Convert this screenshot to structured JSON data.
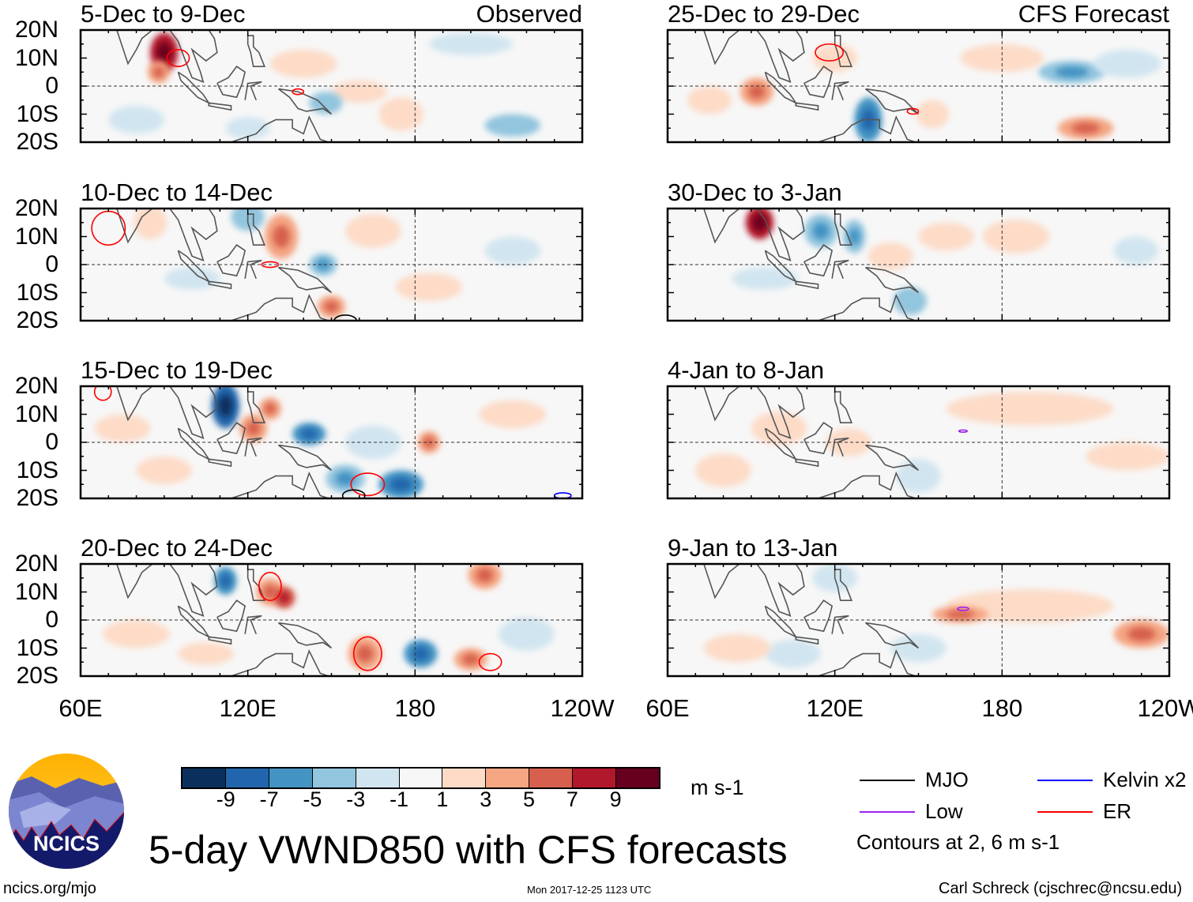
{
  "title": "5-day VWND850 with CFS forecasts",
  "units": "m s-1",
  "footer": {
    "left": "ncics.org/mjo",
    "center": "Mon 2017-12-25 1123 UTC",
    "right": "Carl Schreck (cjschrec@ncsu.edu)"
  },
  "logo_text": "NCICS",
  "column_labels": {
    "left": "Observed",
    "right": "CFS Forecast"
  },
  "y_ticks": [
    "20N",
    "10N",
    "0",
    "10S",
    "20S"
  ],
  "x_ticks": [
    "60E",
    "120E",
    "180",
    "120W"
  ],
  "colorbar": {
    "colors": [
      "#0b2f5d",
      "#2166ac",
      "#4393c3",
      "#92c5de",
      "#d1e5f0",
      "#f7f7f7",
      "#fddbc7",
      "#f4a582",
      "#d6604d",
      "#b2182b",
      "#67001f"
    ],
    "labels": [
      "-9",
      "-7",
      "-5",
      "-3",
      "-1",
      "1",
      "3",
      "5",
      "7",
      "9"
    ]
  },
  "legend": {
    "items": [
      {
        "name": "MJO",
        "color": "#000000"
      },
      {
        "name": "Kelvin x2",
        "color": "#0000ff"
      },
      {
        "name": "Low",
        "color": "#a020f0"
      },
      {
        "name": "ER",
        "color": "#ff0000"
      }
    ],
    "note": "Contours at 2, 6 m s-1"
  },
  "panels": [
    {
      "title": "5-Dec to 9-Dec",
      "label": "Observed",
      "blobs": [
        [
          90,
          12,
          5,
          7,
          8
        ],
        [
          88,
          5,
          4,
          4,
          4
        ],
        [
          140,
          8,
          12,
          5,
          2
        ],
        [
          160,
          -2,
          10,
          4,
          2
        ],
        [
          80,
          -12,
          10,
          5,
          -2
        ],
        [
          200,
          15,
          15,
          4,
          -2
        ],
        [
          215,
          -14,
          10,
          4,
          -3
        ],
        [
          148,
          -6,
          6,
          4,
          -3
        ],
        [
          120,
          -15,
          8,
          4,
          -2
        ],
        [
          175,
          -10,
          8,
          6,
          2
        ]
      ],
      "contours": [
        [
          "ER",
          95,
          10,
          4,
          3
        ],
        [
          "ER",
          138,
          -2,
          2,
          1
        ]
      ]
    },
    {
      "title": "10-Dec to 14-Dec",
      "blobs": [
        [
          132,
          10,
          6,
          8,
          4
        ],
        [
          147,
          0,
          5,
          4,
          -4
        ],
        [
          150,
          -15,
          5,
          4,
          5
        ],
        [
          120,
          17,
          6,
          5,
          -3
        ],
        [
          85,
          15,
          6,
          6,
          2
        ],
        [
          185,
          -8,
          12,
          5,
          2
        ],
        [
          215,
          5,
          10,
          5,
          -2
        ],
        [
          100,
          -5,
          10,
          4,
          -2
        ],
        [
          165,
          12,
          10,
          6,
          2
        ]
      ],
      "contours": [
        [
          "ER",
          70,
          13,
          6,
          6
        ],
        [
          "ER",
          128,
          0,
          3,
          1
        ],
        [
          "MJO",
          155,
          -20,
          4,
          2
        ]
      ]
    },
    {
      "title": "15-Dec to 19-Dec",
      "blobs": [
        [
          112,
          13,
          5,
          8,
          -8
        ],
        [
          122,
          5,
          5,
          5,
          4
        ],
        [
          128,
          12,
          4,
          4,
          5
        ],
        [
          142,
          3,
          6,
          4,
          -6
        ],
        [
          155,
          -13,
          7,
          5,
          -4
        ],
        [
          175,
          -15,
          8,
          5,
          -5
        ],
        [
          185,
          0,
          4,
          4,
          4
        ],
        [
          75,
          5,
          10,
          5,
          2
        ],
        [
          215,
          10,
          12,
          5,
          2
        ],
        [
          90,
          -10,
          10,
          5,
          2
        ],
        [
          165,
          0,
          10,
          6,
          -2
        ]
      ],
      "contours": [
        [
          "ER",
          163,
          -15,
          6,
          4
        ],
        [
          "ER",
          68,
          18,
          3,
          3
        ],
        [
          "MJO",
          158,
          -19,
          4,
          2
        ],
        [
          "Kelvin x2",
          233,
          -19,
          3,
          1
        ]
      ]
    },
    {
      "title": "20-Dec to 24-Dec",
      "blobs": [
        [
          112,
          14,
          4,
          5,
          -5
        ],
        [
          128,
          10,
          5,
          5,
          4
        ],
        [
          133,
          8,
          4,
          4,
          6
        ],
        [
          162,
          -12,
          6,
          6,
          5
        ],
        [
          182,
          -12,
          6,
          5,
          -6
        ],
        [
          205,
          16,
          6,
          5,
          5
        ],
        [
          200,
          -14,
          6,
          4,
          4
        ],
        [
          80,
          -5,
          12,
          5,
          2
        ],
        [
          220,
          -5,
          10,
          6,
          -2
        ],
        [
          105,
          -12,
          10,
          4,
          2
        ]
      ],
      "contours": [
        [
          "ER",
          163,
          -12,
          5,
          6
        ],
        [
          "ER",
          207,
          -15,
          4,
          3
        ],
        [
          "ER",
          128,
          12,
          4,
          5
        ]
      ]
    },
    {
      "title": "25-Dec to 29-Dec",
      "label": "CFS Forecast",
      "blobs": [
        [
          120,
          10,
          8,
          5,
          2
        ],
        [
          92,
          -2,
          6,
          5,
          4
        ],
        [
          132,
          -12,
          5,
          8,
          -6
        ],
        [
          155,
          -10,
          6,
          5,
          2
        ],
        [
          205,
          5,
          12,
          4,
          -4
        ],
        [
          210,
          -15,
          10,
          4,
          4
        ],
        [
          180,
          10,
          15,
          5,
          2
        ],
        [
          75,
          -5,
          8,
          5,
          2
        ],
        [
          225,
          8,
          12,
          5,
          -2
        ]
      ],
      "contours": [
        [
          "ER",
          118,
          12,
          5,
          3
        ],
        [
          "ER",
          148,
          -9,
          2,
          1
        ]
      ]
    },
    {
      "title": "30-Dec to 3-Jan",
      "blobs": [
        [
          93,
          15,
          5,
          6,
          8
        ],
        [
          115,
          12,
          6,
          6,
          -4
        ],
        [
          127,
          10,
          4,
          6,
          -4
        ],
        [
          140,
          3,
          8,
          5,
          3
        ],
        [
          160,
          10,
          10,
          5,
          3
        ],
        [
          147,
          -13,
          6,
          5,
          -3
        ],
        [
          185,
          10,
          12,
          6,
          2
        ],
        [
          95,
          -5,
          12,
          4,
          -2
        ],
        [
          228,
          5,
          8,
          5,
          -2
        ]
      ],
      "contours": []
    },
    {
      "title": "4-Jan to 8-Jan",
      "blobs": [
        [
          100,
          5,
          10,
          6,
          2
        ],
        [
          125,
          0,
          8,
          5,
          2
        ],
        [
          190,
          12,
          30,
          6,
          2
        ],
        [
          150,
          -12,
          8,
          6,
          -2
        ],
        [
          225,
          -5,
          15,
          5,
          2
        ],
        [
          80,
          -10,
          10,
          6,
          2
        ]
      ],
      "contours": [
        [
          "Low",
          166,
          4,
          1.5,
          0.4
        ]
      ]
    },
    {
      "title": "9-Jan to 13-Jan",
      "blobs": [
        [
          190,
          5,
          30,
          6,
          2
        ],
        [
          230,
          -5,
          10,
          5,
          4
        ],
        [
          165,
          2,
          10,
          3,
          4
        ],
        [
          105,
          -12,
          10,
          5,
          -2
        ],
        [
          150,
          -10,
          10,
          5,
          -2
        ],
        [
          85,
          -10,
          12,
          5,
          2
        ],
        [
          120,
          15,
          8,
          5,
          -2
        ]
      ],
      "contours": [
        [
          "Low",
          166,
          4,
          2,
          0.6
        ]
      ]
    }
  ]
}
